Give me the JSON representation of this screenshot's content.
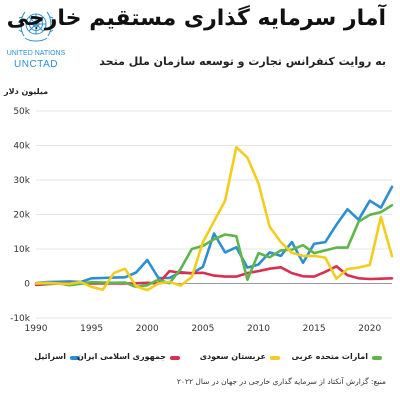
{
  "header": {
    "title": "آمار سرمایه گذاری مستقیم خارجی",
    "subtitle": "به روایت کنفرانس تجارت و توسعه سازمان ملل متحد",
    "logo_name": "UNITED NATIONS",
    "logo_acronym": "UNCTAD"
  },
  "footer": {
    "source": "منبع: گزارش آنکتاد از سرمایه گذاری خارجی در جهان در سال ۲۰۲۲"
  },
  "colors": {
    "israel": "#2b8fd1",
    "iran": "#d9304f",
    "saudi": "#f2cd1f",
    "uae": "#5fb549",
    "grid": "#dddddd",
    "axis_text": "#333333"
  },
  "chart_data": {
    "type": "line",
    "title": "آمار سرمایه گذاری مستقیم خارجی",
    "subtitle": "به روایت کنفرانس تجارت و توسعه سازمان ملل متحد",
    "ylabel": "میلیون دلار",
    "xlabel": "",
    "xlim": [
      1990,
      2022
    ],
    "ylim": [
      -10000,
      50000
    ],
    "yticks": [
      -10000,
      0,
      10000,
      20000,
      30000,
      40000,
      50000
    ],
    "ytick_labels": [
      "-10k",
      "0",
      "10k",
      "20k",
      "30k",
      "40k",
      "50k"
    ],
    "xticks": [
      1990,
      1995,
      2000,
      2005,
      2010,
      2015,
      2020
    ],
    "xtick_labels": [
      "1990",
      "1995",
      "2000",
      "2005",
      "2010",
      "2015",
      "2020"
    ],
    "grid": true,
    "legend_position": "bottom",
    "x": [
      1990,
      1991,
      1992,
      1993,
      1994,
      1995,
      1996,
      1997,
      1998,
      1999,
      2000,
      2001,
      2002,
      2003,
      2004,
      2005,
      2006,
      2007,
      2008,
      2009,
      2010,
      2011,
      2012,
      2013,
      2014,
      2015,
      2016,
      2017,
      2018,
      2019,
      2020,
      2021,
      2022
    ],
    "series": [
      {
        "key": "israel",
        "name": "اسرائیل",
        "color": "#2b8fd1",
        "values": [
          100,
          400,
          500,
          600,
          400,
          1500,
          1600,
          1700,
          1800,
          3200,
          6800,
          1600,
          1600,
          3300,
          2900,
          4800,
          14500,
          9000,
          10500,
          4600,
          5500,
          9000,
          8000,
          12000,
          6000,
          11500,
          12000,
          17000,
          21500,
          18500,
          24000,
          22000,
          28000
        ]
      },
      {
        "key": "iran",
        "name": "جمهوری اسلامی ایران",
        "color": "#d9304f",
        "values": [
          -400,
          -200,
          0,
          100,
          0,
          0,
          0,
          50,
          20,
          50,
          200,
          0,
          3600,
          3100,
          3000,
          3100,
          2300,
          2000,
          2000,
          3000,
          3600,
          4300,
          4700,
          3000,
          2100,
          2000,
          3400,
          5000,
          2400,
          1500,
          1300,
          1400,
          1500
        ]
      },
      {
        "key": "saudi",
        "name": "عربستان سعودی",
        "color": "#f2cd1f",
        "values": [
          0,
          200,
          0,
          -100,
          400,
          -1000,
          -1800,
          3000,
          4300,
          -800,
          -1900,
          0,
          500,
          -600,
          1900,
          12000,
          18000,
          24000,
          39500,
          36500,
          29000,
          16500,
          12000,
          8900,
          8000,
          8000,
          7500,
          1400,
          4200,
          4600,
          5400,
          19300,
          7900
        ]
      },
      {
        "key": "uae",
        "name": "امارات متحده عربی",
        "color": "#5fb549",
        "values": [
          0,
          -100,
          100,
          -500,
          -100,
          400,
          300,
          200,
          300,
          -1000,
          -500,
          1100,
          100,
          4200,
          10000,
          10900,
          12800,
          14200,
          13700,
          1100,
          8800,
          7600,
          9600,
          9800,
          11100,
          8800,
          9600,
          10400,
          10400,
          17900,
          19900,
          20700,
          22700
        ]
      }
    ]
  }
}
